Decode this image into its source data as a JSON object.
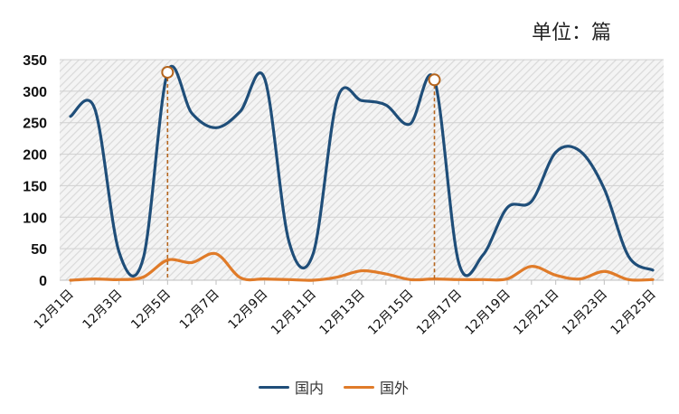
{
  "chart_data": {
    "type": "line",
    "unit_label": "单位：篇",
    "x": [
      "12月1日",
      "12月2日",
      "12月3日",
      "12月4日",
      "12月5日",
      "12月6日",
      "12月7日",
      "12月8日",
      "12月9日",
      "12月10日",
      "12月11日",
      "12月12日",
      "12月13日",
      "12月14日",
      "12月15日",
      "12月16日",
      "12月17日",
      "12月18日",
      "12月19日",
      "12月20日",
      "12月21日",
      "12月22日",
      "12月23日",
      "12月24日",
      "12月25日"
    ],
    "x_tick_labels": [
      "12月1日",
      "12月3日",
      "12月5日",
      "12月7日",
      "12月9日",
      "12月11日",
      "12月13日",
      "12月15日",
      "12月17日",
      "12月19日",
      "12月21日",
      "12月23日",
      "12月25日"
    ],
    "ylim": [
      0,
      350
    ],
    "y_ticks": [
      0,
      50,
      100,
      150,
      200,
      250,
      300,
      350
    ],
    "grid": true,
    "legend": "bottom",
    "series": [
      {
        "name": "国内",
        "color": "#1f4e79",
        "values": [
          260,
          272,
          45,
          35,
          330,
          265,
          242,
          268,
          320,
          62,
          42,
          288,
          285,
          278,
          248,
          318,
          28,
          40,
          115,
          125,
          203,
          205,
          145,
          38,
          16
        ]
      },
      {
        "name": "国外",
        "color": "#e07b29",
        "values": [
          0,
          2,
          1,
          5,
          32,
          28,
          42,
          4,
          2,
          1,
          0,
          5,
          15,
          10,
          1,
          2,
          1,
          1,
          2,
          22,
          8,
          2,
          14,
          1,
          1
        ]
      }
    ],
    "markers": [
      {
        "x": "12月5日",
        "y": 330
      },
      {
        "x": "12月16日",
        "y": 318
      }
    ]
  }
}
